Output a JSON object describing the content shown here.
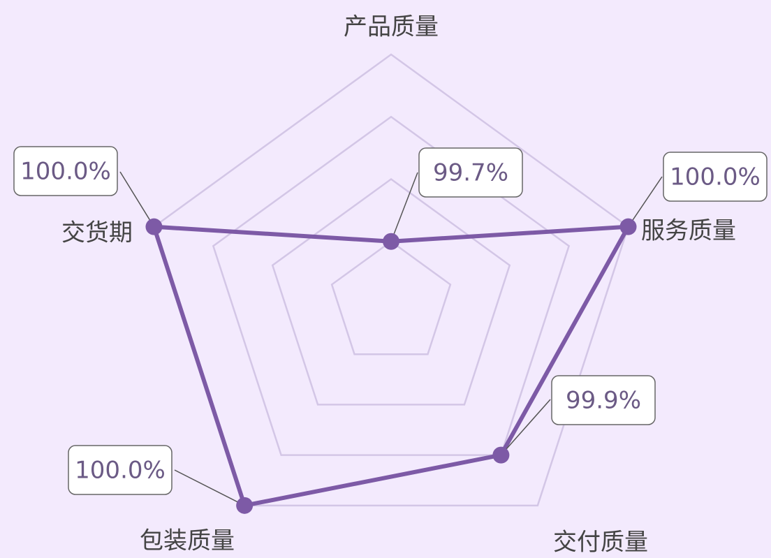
{
  "chart_data": {
    "type": "radar",
    "categories": [
      "产品质量",
      "服务质量",
      "交付质量",
      "包装质量",
      "交货期"
    ],
    "values": [
      99.7,
      100,
      99.9,
      100,
      100
    ],
    "value_labels": [
      "99.7%",
      "100.0%",
      "99.9%",
      "100.0%",
      "100.0%"
    ],
    "color": "#7d5aa6",
    "rlim": [
      99.6,
      100
    ],
    "rticks": [
      99.7,
      99.8,
      99.9,
      100
    ]
  }
}
